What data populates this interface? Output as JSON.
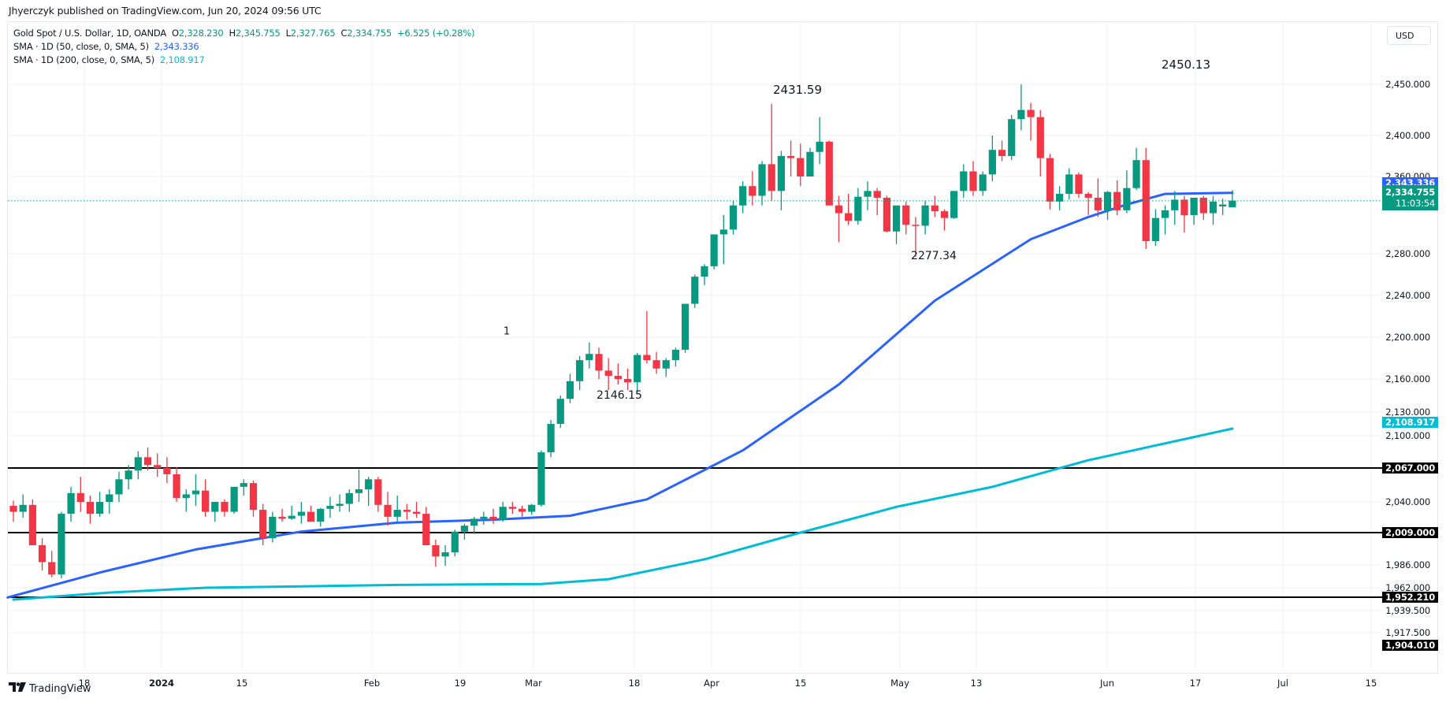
{
  "header": {
    "published": "Jhyerczyk published on TradingView.com, Jun 20, 2024 09:56 UTC"
  },
  "legend": {
    "symbol": "Gold Spot / U.S. Dollar, 1D, OANDA",
    "o_label": "O",
    "o": "2,328.230",
    "h_label": "H",
    "h": "2,345.755",
    "l_label": "L",
    "l": "2,327.765",
    "c_label": "C",
    "c": "2,334.755",
    "change": "+6.525 (+0.28%)",
    "sma50_label": "SMA · 1D (50, close, 0, SMA, 5)",
    "sma50_value": "2,343.336",
    "sma200_label": "SMA · 1D (200, close, 0, SMA, 5)",
    "sma200_value": "2,108.917"
  },
  "currency_button": "USD",
  "colors": {
    "up": "#089981",
    "down": "#f23645",
    "sma50": "#2962ff",
    "sma200": "#00bcd4",
    "hline": "#000000",
    "grid": "#f0f1f4"
  },
  "price_axis": {
    "ticks": [
      "2,450.000",
      "2,400.000",
      "2,360.000",
      "2,280.000",
      "2,240.000",
      "2,200.000",
      "2,160.000",
      "2,130.000",
      "2,100.000",
      "2,040.000",
      "1,986.000",
      "1,962.000",
      "1,939.500",
      "1,917.500"
    ],
    "labels": {
      "sma50": "2,343.336",
      "last_price": "2,334.755",
      "countdown": "11:03:54",
      "sma200": "2,108.917",
      "hline1": "2,067.000",
      "hline2": "2,009.000",
      "hline3": "1,952.210",
      "hline4": "1,904.010"
    }
  },
  "time_axis": {
    "labels": [
      "18",
      "2024",
      "15",
      "Feb",
      "19",
      "Mar",
      "18",
      "Apr",
      "15",
      "May",
      "13",
      "Jun",
      "17",
      "Jul",
      "15"
    ]
  },
  "annotations": {
    "high1": "2431.59",
    "high2": "2450.13",
    "low1": "2146.15",
    "low2": "2277.34",
    "marker": "1"
  },
  "brand": "TradingView",
  "chart_data": {
    "type": "candlestick",
    "title": "Gold Spot / U.S. Dollar, 1D, OANDA",
    "xlabel": "",
    "ylabel": "USD",
    "ylim": [
      1904,
      2465
    ],
    "grid": true,
    "legend_position": "top-left",
    "horizontal_lines": [
      2067.0,
      2009.0,
      1952.21,
      1904.01
    ],
    "last": {
      "open": 2328.23,
      "high": 2345.755,
      "low": 2327.765,
      "close": 2334.755
    },
    "annotations": [
      {
        "text": "2431.59",
        "type": "high",
        "near": "Apr 12"
      },
      {
        "text": "2450.13",
        "type": "high",
        "near": "May 20"
      },
      {
        "text": "2146.15",
        "type": "low",
        "near": "Mar 14"
      },
      {
        "text": "2277.34",
        "type": "low",
        "near": "May 3"
      }
    ],
    "candles": [
      [
        2036,
        2041,
        2020,
        2030
      ],
      [
        2030,
        2046,
        2024,
        2037
      ],
      [
        2037,
        2042,
        2000,
        2000
      ],
      [
        2000,
        2005,
        1980,
        1988
      ],
      [
        1988,
        1996,
        1973,
        1976
      ],
      [
        1976,
        2030,
        1972,
        2028
      ],
      [
        2028,
        2052,
        2020,
        2047
      ],
      [
        2047,
        2060,
        2030,
        2040
      ],
      [
        2040,
        2045,
        2018,
        2028
      ],
      [
        2028,
        2048,
        2025,
        2040
      ],
      [
        2040,
        2050,
        2028,
        2046
      ],
      [
        2046,
        2064,
        2040,
        2058
      ],
      [
        2058,
        2070,
        2050,
        2065
      ],
      [
        2065,
        2084,
        2058,
        2078
      ],
      [
        2078,
        2088,
        2065,
        2070
      ],
      [
        2070,
        2082,
        2060,
        2067
      ],
      [
        2067,
        2078,
        2055,
        2062
      ],
      [
        2062,
        2068,
        2040,
        2043
      ],
      [
        2043,
        2050,
        2030,
        2046
      ],
      [
        2046,
        2062,
        2036,
        2049
      ],
      [
        2049,
        2058,
        2025,
        2030
      ],
      [
        2030,
        2040,
        2020,
        2040
      ],
      [
        2040,
        2042,
        2025,
        2030
      ],
      [
        2030,
        2052,
        2028,
        2052
      ],
      [
        2052,
        2058,
        2045,
        2055
      ],
      [
        2055,
        2057,
        2025,
        2032
      ],
      [
        2032,
        2038,
        2000,
        2005
      ],
      [
        2005,
        2030,
        2002,
        2025
      ],
      [
        2025,
        2033,
        2020,
        2023
      ],
      [
        2023,
        2036,
        2022,
        2026
      ],
      [
        2026,
        2040,
        2018,
        2030
      ],
      [
        2030,
        2036,
        2020,
        2020
      ],
      [
        2020,
        2034,
        2015,
        2033
      ],
      [
        2033,
        2044,
        2024,
        2036
      ],
      [
        2036,
        2046,
        2030,
        2038
      ],
      [
        2038,
        2050,
        2030,
        2047
      ],
      [
        2047,
        2066,
        2040,
        2050
      ],
      [
        2050,
        2060,
        2036,
        2058
      ],
      [
        2058,
        2060,
        2030,
        2037
      ],
      [
        2037,
        2048,
        2016,
        2025
      ],
      [
        2025,
        2045,
        2020,
        2032
      ],
      [
        2032,
        2038,
        2022,
        2030
      ],
      [
        2030,
        2040,
        2024,
        2028
      ],
      [
        2028,
        2035,
        2000,
        2000
      ],
      [
        2000,
        2004,
        1984,
        1992
      ],
      [
        1992,
        2000,
        1985,
        1995
      ],
      [
        1995,
        2012,
        1992,
        2010
      ],
      [
        2010,
        2018,
        2004,
        2016
      ],
      [
        2016,
        2025,
        2008,
        2023
      ],
      [
        2023,
        2030,
        2017,
        2025
      ],
      [
        2025,
        2033,
        2018,
        2022
      ],
      [
        2022,
        2040,
        2020,
        2035
      ],
      [
        2035,
        2040,
        2028,
        2033
      ],
      [
        2033,
        2036,
        2025,
        2030
      ],
      [
        2030,
        2038,
        2027,
        2037
      ],
      [
        2037,
        2085,
        2035,
        2083
      ],
      [
        2083,
        2120,
        2078,
        2115
      ],
      [
        2115,
        2145,
        2110,
        2142
      ],
      [
        2142,
        2165,
        2138,
        2158
      ],
      [
        2158,
        2182,
        2150,
        2178
      ],
      [
        2178,
        2195,
        2170,
        2184
      ],
      [
        2184,
        2190,
        2160,
        2168
      ],
      [
        2168,
        2180,
        2150,
        2163
      ],
      [
        2163,
        2175,
        2155,
        2160
      ],
      [
        2160,
        2170,
        2150,
        2157
      ],
      [
        2157,
        2185,
        2148,
        2183
      ],
      [
        2183,
        2225,
        2175,
        2178
      ],
      [
        2178,
        2186,
        2165,
        2170
      ],
      [
        2170,
        2180,
        2162,
        2178
      ],
      [
        2178,
        2190,
        2172,
        2188
      ],
      [
        2188,
        2228,
        2185,
        2232
      ],
      [
        2232,
        2260,
        2228,
        2258
      ],
      [
        2258,
        2270,
        2250,
        2268
      ],
      [
        2268,
        2300,
        2265,
        2300
      ],
      [
        2300,
        2320,
        2270,
        2305
      ],
      [
        2305,
        2335,
        2300,
        2330
      ],
      [
        2330,
        2355,
        2322,
        2350
      ],
      [
        2350,
        2365,
        2330,
        2340
      ],
      [
        2340,
        2375,
        2330,
        2372
      ],
      [
        2372,
        2431,
        2335,
        2345
      ],
      [
        2345,
        2385,
        2325,
        2380
      ],
      [
        2380,
        2395,
        2360,
        2378
      ],
      [
        2378,
        2392,
        2350,
        2360
      ],
      [
        2360,
        2388,
        2360,
        2384
      ],
      [
        2384,
        2418,
        2372,
        2394
      ],
      [
        2394,
        2395,
        2330,
        2330
      ],
      [
        2330,
        2340,
        2292,
        2322
      ],
      [
        2322,
        2342,
        2310,
        2314
      ],
      [
        2314,
        2348,
        2310,
        2339
      ],
      [
        2339,
        2355,
        2325,
        2345
      ],
      [
        2345,
        2348,
        2320,
        2338
      ],
      [
        2338,
        2340,
        2302,
        2303
      ],
      [
        2303,
        2326,
        2290,
        2330
      ],
      [
        2330,
        2334,
        2300,
        2310
      ],
      [
        2310,
        2318,
        2277,
        2309
      ],
      [
        2309,
        2335,
        2300,
        2330
      ],
      [
        2330,
        2340,
        2318,
        2324
      ],
      [
        2324,
        2326,
        2304,
        2317
      ],
      [
        2317,
        2345,
        2316,
        2345
      ],
      [
        2345,
        2372,
        2338,
        2365
      ],
      [
        2365,
        2375,
        2340,
        2345
      ],
      [
        2345,
        2365,
        2340,
        2362
      ],
      [
        2362,
        2400,
        2355,
        2386
      ],
      [
        2386,
        2395,
        2375,
        2380
      ],
      [
        2380,
        2420,
        2376,
        2416
      ],
      [
        2416,
        2450,
        2405,
        2425
      ],
      [
        2425,
        2432,
        2395,
        2418
      ],
      [
        2418,
        2425,
        2360,
        2378
      ],
      [
        2378,
        2382,
        2326,
        2334
      ],
      [
        2334,
        2350,
        2325,
        2342
      ],
      [
        2342,
        2368,
        2336,
        2362
      ],
      [
        2362,
        2364,
        2338,
        2342
      ],
      [
        2342,
        2344,
        2320,
        2338
      ],
      [
        2338,
        2358,
        2318,
        2325
      ],
      [
        2325,
        2345,
        2315,
        2344
      ],
      [
        2344,
        2356,
        2320,
        2325
      ],
      [
        2325,
        2366,
        2322,
        2348
      ],
      [
        2348,
        2388,
        2346,
        2376
      ],
      [
        2376,
        2388,
        2285,
        2293
      ],
      [
        2293,
        2326,
        2288,
        2317
      ],
      [
        2317,
        2330,
        2300,
        2325
      ],
      [
        2325,
        2345,
        2310,
        2336
      ],
      [
        2336,
        2340,
        2302,
        2320
      ],
      [
        2320,
        2338,
        2310,
        2338
      ],
      [
        2338,
        2340,
        2315,
        2322
      ],
      [
        2322,
        2340,
        2310,
        2334
      ],
      [
        2329,
        2337,
        2320,
        2331
      ],
      [
        2328,
        2346,
        2328,
        2335
      ]
    ],
    "sma50_approx": [
      [
        0,
        1957
      ],
      [
        9,
        1978
      ],
      [
        19,
        1997
      ],
      [
        30,
        2010
      ],
      [
        40,
        2019
      ],
      [
        50,
        2022
      ],
      [
        58,
        2026
      ],
      [
        66,
        2042
      ],
      [
        76,
        2085
      ],
      [
        86,
        2155
      ],
      [
        96,
        2235
      ],
      [
        106,
        2295
      ],
      [
        112,
        2318
      ],
      [
        116,
        2331
      ],
      [
        120,
        2342
      ],
      [
        127,
        2343
      ]
    ],
    "sma200_approx": [
      [
        0,
        1950
      ],
      [
        10,
        1957
      ],
      [
        20,
        1962
      ],
      [
        40,
        1965
      ],
      [
        55,
        1966
      ],
      [
        62,
        1971
      ],
      [
        72,
        1990
      ],
      [
        82,
        2009
      ],
      [
        92,
        2035
      ],
      [
        102,
        2052
      ],
      [
        112,
        2075
      ],
      [
        127,
        2109
      ]
    ]
  }
}
